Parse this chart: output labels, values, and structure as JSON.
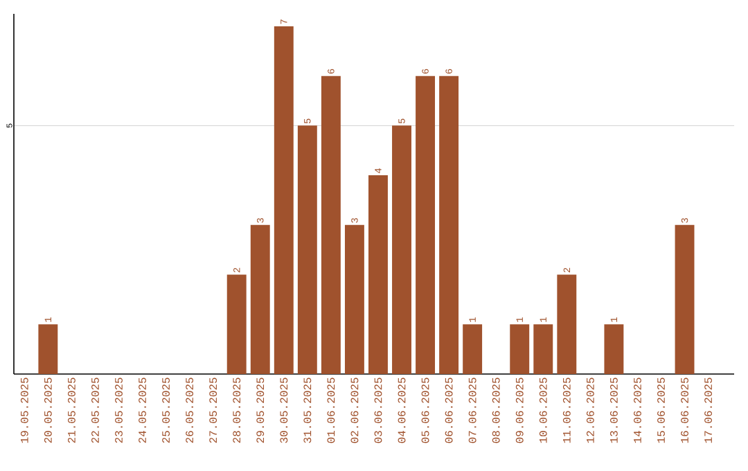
{
  "chart_data": {
    "type": "bar",
    "categories": [
      "19.05.2025",
      "20.05.2025",
      "21.05.2025",
      "22.05.2025",
      "23.05.2025",
      "24.05.2025",
      "25.05.2025",
      "26.05.2025",
      "27.05.2025",
      "28.05.2025",
      "29.05.2025",
      "30.05.2025",
      "31.05.2025",
      "01.06.2025",
      "02.06.2025",
      "03.06.2025",
      "04.06.2025",
      "05.06.2025",
      "06.06.2025",
      "07.06.2025",
      "08.06.2025",
      "09.06.2025",
      "10.06.2025",
      "11.06.2025",
      "12.06.2025",
      "13.06.2025",
      "14.06.2025",
      "15.06.2025",
      "16.06.2025",
      "17.06.2025"
    ],
    "values": [
      null,
      1,
      null,
      null,
      null,
      null,
      null,
      null,
      null,
      2,
      3,
      7,
      5,
      6,
      3,
      4,
      5,
      6,
      6,
      1,
      null,
      1,
      1,
      2,
      null,
      1,
      null,
      null,
      3,
      null
    ],
    "color": "#a0522d",
    "ylim": [
      0,
      7.25
    ],
    "yticks": [
      5
    ],
    "grid": "y",
    "data_labels": true
  }
}
